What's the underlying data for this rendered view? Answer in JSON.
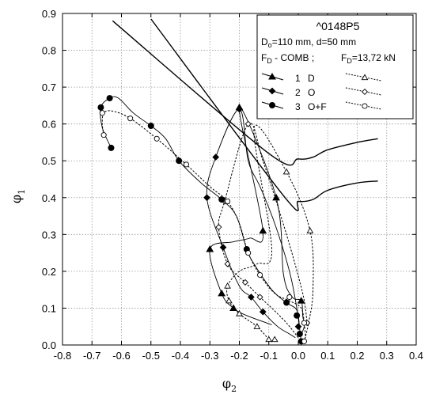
{
  "chart_data": {
    "type": "line",
    "title": "^0148P5",
    "xlabel": "φ",
    "xlabel_sub": "2",
    "ylabel": "φ",
    "ylabel_sub": "1",
    "xlim": [
      -0.8,
      0.4
    ],
    "ylim": [
      0.0,
      0.9
    ],
    "x_ticks": [
      "-0.8",
      "-0.7",
      "-0.6",
      "-0.5",
      "-0.4",
      "-0.3",
      "-0.2",
      "-0.1",
      "0.0",
      "0.1",
      "0.2",
      "0.3",
      "0.4"
    ],
    "y_ticks": [
      "0.0",
      "0.1",
      "0.2",
      "0.3",
      "0.4",
      "0.5",
      "0.6",
      "0.7",
      "0.8",
      "0.9"
    ],
    "x_tick_values": [
      -0.8,
      -0.7,
      -0.6,
      -0.5,
      -0.4,
      -0.3,
      -0.2,
      -0.1,
      0.0,
      0.1,
      0.2,
      0.3,
      0.4
    ],
    "y_tick_values": [
      0,
      0.1,
      0.2,
      0.3,
      0.4,
      0.5,
      0.6,
      0.7,
      0.8,
      0.9
    ],
    "grid": true,
    "legend_position": "top-right",
    "legend": {
      "title": "^0148P5",
      "line1_pre": "D",
      "line1_sub": "o",
      "line1_post": "=110 mm, d=50 mm",
      "line2_left_pre": "F",
      "line2_left_sub": "D",
      "line2_left_post": " - COMB ;",
      "line2_right_pre": "F",
      "line2_right_sub": "D",
      "line2_right_post": "=13,72 kN",
      "entries": [
        {
          "num": "1",
          "name": "D",
          "marker": "triangle"
        },
        {
          "num": "2",
          "name": "O",
          "marker": "diamond"
        },
        {
          "num": "3",
          "name": "O+F",
          "marker": "circle"
        }
      ]
    },
    "boundary_lines": [
      {
        "points": [
          [
            -0.63,
            0.88
          ],
          [
            -0.1,
            0.52
          ],
          [
            0.0,
            0.505
          ],
          [
            0.05,
            0.51
          ],
          [
            0.1,
            0.53
          ],
          [
            0.2,
            0.55
          ],
          [
            0.27,
            0.56
          ]
        ]
      },
      {
        "points": [
          [
            -0.5,
            0.885
          ],
          [
            -0.05,
            0.405
          ],
          [
            0.0,
            0.39
          ],
          [
            0.05,
            0.395
          ],
          [
            0.1,
            0.42
          ],
          [
            0.2,
            0.44
          ],
          [
            0.27,
            0.445
          ]
        ]
      }
    ],
    "series": [
      {
        "marker": "triangle",
        "style": "solid",
        "points": [
          [
            -0.09,
            0.055
          ],
          [
            -0.175,
            0.08
          ],
          [
            -0.22,
            0.1
          ],
          [
            -0.26,
            0.14
          ],
          [
            -0.3,
            0.26
          ],
          [
            -0.22,
            0.28
          ],
          [
            -0.165,
            0.29
          ],
          [
            -0.12,
            0.31
          ],
          [
            -0.2,
            0.645
          ],
          [
            -0.075,
            0.4
          ],
          [
            -0.05,
            0.19
          ],
          [
            -0.02,
            0.13
          ],
          [
            0.01,
            0.12
          ],
          [
            0.015,
            0.08
          ],
          [
            0.02,
            0.05
          ],
          [
            0.01,
            0.03
          ]
        ],
        "marked": [
          [
            -0.22,
            0.1
          ],
          [
            -0.26,
            0.14
          ],
          [
            -0.3,
            0.26
          ],
          [
            -0.12,
            0.31
          ],
          [
            -0.2,
            0.645
          ],
          [
            -0.075,
            0.4
          ],
          [
            0.01,
            0.12
          ]
        ]
      },
      {
        "marker": "triangle",
        "style": "dashed",
        "points": [
          [
            -0.1,
            0.015
          ],
          [
            -0.14,
            0.05
          ],
          [
            -0.2,
            0.085
          ],
          [
            -0.235,
            0.12
          ],
          [
            -0.24,
            0.16
          ],
          [
            -0.2,
            0.2
          ],
          [
            -0.14,
            0.22
          ],
          [
            -0.09,
            0.26
          ],
          [
            -0.15,
            0.59
          ],
          [
            -0.04,
            0.47
          ],
          [
            0.04,
            0.31
          ],
          [
            0.05,
            0.15
          ],
          [
            0.035,
            0.06
          ],
          [
            0.02,
            0.01
          ]
        ],
        "marked": [
          [
            -0.1,
            0.015
          ],
          [
            -0.08,
            0.015
          ],
          [
            -0.14,
            0.05
          ],
          [
            -0.2,
            0.085
          ],
          [
            -0.235,
            0.12
          ],
          [
            -0.24,
            0.16
          ],
          [
            -0.04,
            0.47
          ],
          [
            0.04,
            0.31
          ]
        ]
      },
      {
        "marker": "diamond",
        "style": "solid",
        "points": [
          [
            -0.01,
            0.02
          ],
          [
            -0.03,
            0.03
          ],
          [
            -0.07,
            0.05
          ],
          [
            -0.12,
            0.09
          ],
          [
            -0.16,
            0.13
          ],
          [
            -0.2,
            0.16
          ],
          [
            -0.255,
            0.265
          ],
          [
            -0.31,
            0.4
          ],
          [
            -0.28,
            0.51
          ],
          [
            -0.2,
            0.64
          ],
          [
            -0.17,
            0.5
          ],
          [
            -0.13,
            0.43
          ],
          [
            -0.08,
            0.33
          ],
          [
            -0.03,
            0.2
          ],
          [
            -0.005,
            0.1
          ],
          [
            0.005,
            0.04
          ]
        ],
        "marked": [
          [
            -0.12,
            0.09
          ],
          [
            -0.16,
            0.13
          ],
          [
            -0.255,
            0.265
          ],
          [
            -0.31,
            0.4
          ],
          [
            -0.28,
            0.51
          ],
          [
            -0.2,
            0.64
          ],
          [
            0.0,
            0.05
          ]
        ]
      },
      {
        "marker": "diamond",
        "style": "dashed",
        "points": [
          [
            0.0,
            0.02
          ],
          [
            -0.04,
            0.06
          ],
          [
            -0.09,
            0.1
          ],
          [
            -0.13,
            0.13
          ],
          [
            -0.18,
            0.17
          ],
          [
            -0.24,
            0.22
          ],
          [
            -0.27,
            0.32
          ],
          [
            -0.25,
            0.39
          ],
          [
            -0.17,
            0.6
          ],
          [
            -0.12,
            0.5
          ],
          [
            -0.04,
            0.3
          ],
          [
            0.015,
            0.14
          ],
          [
            0.03,
            0.06
          ]
        ],
        "marked": [
          [
            -0.13,
            0.13
          ],
          [
            -0.18,
            0.17
          ],
          [
            -0.24,
            0.22
          ],
          [
            -0.27,
            0.32
          ],
          [
            -0.25,
            0.39
          ],
          [
            -0.17,
            0.6
          ],
          [
            0.03,
            0.06
          ]
        ]
      },
      {
        "marker": "circle",
        "style": "solid",
        "points": [
          [
            -0.635,
            0.535
          ],
          [
            -0.665,
            0.59
          ],
          [
            -0.67,
            0.645
          ],
          [
            -0.64,
            0.67
          ],
          [
            -0.61,
            0.67
          ],
          [
            -0.56,
            0.63
          ],
          [
            -0.5,
            0.595
          ],
          [
            -0.45,
            0.56
          ],
          [
            -0.405,
            0.5
          ],
          [
            -0.33,
            0.44
          ],
          [
            -0.26,
            0.395
          ],
          [
            -0.21,
            0.35
          ],
          [
            -0.175,
            0.26
          ],
          [
            -0.15,
            0.22
          ],
          [
            -0.09,
            0.15
          ],
          [
            -0.04,
            0.115
          ],
          [
            -0.01,
            0.1
          ],
          [
            0.0,
            0.08
          ],
          [
            0.005,
            0.04
          ],
          [
            0.01,
            0.01
          ]
        ],
        "marked": [
          [
            -0.635,
            0.535
          ],
          [
            -0.67,
            0.645
          ],
          [
            -0.64,
            0.67
          ],
          [
            -0.5,
            0.595
          ],
          [
            -0.405,
            0.5
          ],
          [
            -0.26,
            0.395
          ],
          [
            -0.175,
            0.26
          ],
          [
            -0.04,
            0.115
          ],
          [
            -0.005,
            0.08
          ],
          [
            0.005,
            0.03
          ],
          [
            0.01,
            0.01
          ]
        ]
      },
      {
        "marker": "circle",
        "style": "dashed",
        "points": [
          [
            -0.66,
            0.57
          ],
          [
            -0.665,
            0.6
          ],
          [
            -0.66,
            0.63
          ],
          [
            -0.63,
            0.635
          ],
          [
            -0.57,
            0.615
          ],
          [
            -0.48,
            0.56
          ],
          [
            -0.38,
            0.49
          ],
          [
            -0.3,
            0.43
          ],
          [
            -0.24,
            0.39
          ],
          [
            -0.2,
            0.33
          ],
          [
            -0.17,
            0.25
          ],
          [
            -0.13,
            0.19
          ],
          [
            -0.08,
            0.14
          ],
          [
            -0.03,
            0.12
          ],
          [
            0.01,
            0.1
          ],
          [
            0.02,
            0.06
          ],
          [
            0.025,
            0.02
          ]
        ],
        "marked": [
          [
            -0.66,
            0.57
          ],
          [
            -0.665,
            0.63
          ],
          [
            -0.57,
            0.615
          ],
          [
            -0.48,
            0.56
          ],
          [
            -0.38,
            0.49
          ],
          [
            -0.24,
            0.39
          ],
          [
            -0.17,
            0.25
          ],
          [
            -0.13,
            0.19
          ],
          [
            -0.03,
            0.13
          ],
          [
            0.02,
            0.06
          ],
          [
            0.02,
            0.01
          ]
        ]
      }
    ]
  }
}
